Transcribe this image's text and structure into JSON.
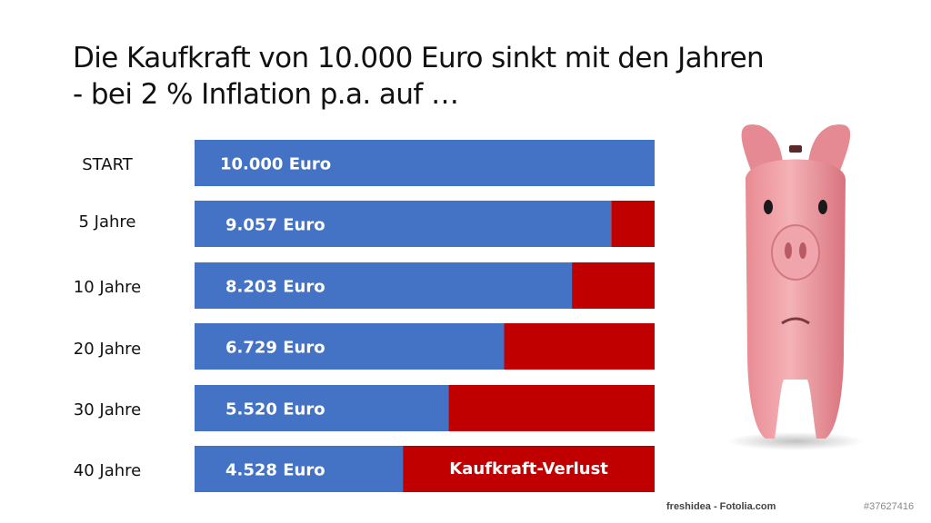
{
  "title": "Die Kaufkraft von 10.000 Euro sinkt mit den  Jahren\n- bei 2 % Inflation p.a. auf …",
  "chart_data": {
    "type": "bar",
    "orientation": "horizontal",
    "stacked": true,
    "title": "Die Kaufkraft von 10.000 Euro sinkt mit den  Jahren - bei 2 % Inflation p.a. auf …",
    "categories": [
      "START",
      "5 Jahre",
      "10 Jahre",
      "20 Jahre",
      "30 Jahre",
      "40 Jahre"
    ],
    "value_labels": [
      "10.000 Euro",
      "9.057 Euro",
      "8.203 Euro",
      "6.729 Euro",
      "5.520 Euro",
      "4.528 Euro"
    ],
    "series": [
      {
        "values": [
          10000,
          9057,
          8203,
          6729,
          5520,
          4528
        ],
        "color": "#4472c4"
      },
      {
        "name": "Kaufkraft-Verlust",
        "values": [
          0,
          943,
          1797,
          3271,
          4480,
          5472
        ],
        "color": "#c00000"
      }
    ],
    "xlim": [
      0,
      10000
    ],
    "grid": false,
    "legend": "none",
    "annotation": "Kaufkraft-Verlust"
  },
  "credits": {
    "left": "freshidea - Fotolia.com",
    "right": "#37627416"
  },
  "illustration": "piggy-bank-illustration"
}
